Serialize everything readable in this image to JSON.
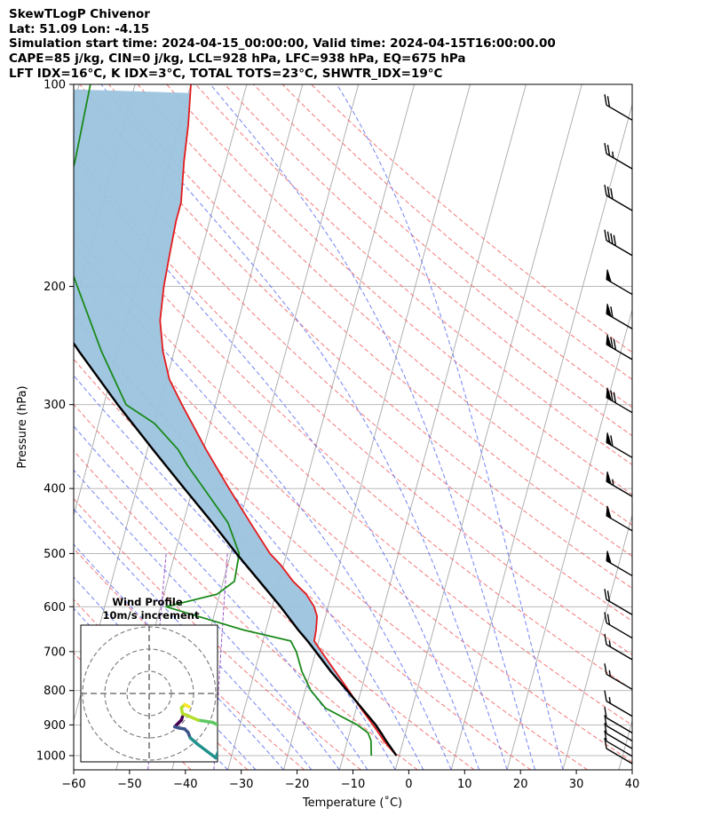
{
  "header": {
    "line1": "SkewTLogP Chivenor",
    "line2": "Lat: 51.09   Lon: -4.15",
    "line3": "Simulation start time: 2024-04-15_00:00:00, Valid time: 2024-04-15T16:00:00.00",
    "line4": "CAPE=85 j/kg, CIN=0 j/kg, LCL=928 hPa, LFC=938 hPa, EQ=675 hPa",
    "line5": "LFT IDX=16°C, K IDX=3°C, TOTAL TOTS=23°C, SHWTR_IDX=19°C"
  },
  "inset": {
    "title": "Wind Profile",
    "subtitle": "10m/s increment"
  },
  "colors": {
    "temperature": "#e41a1c",
    "dewpoint": "#1a8a1a",
    "parcel": "#000000",
    "cape_fill": "#9cc3de",
    "dry_adiabat": "#f26060",
    "moist_adiabat": "#5a6ef0",
    "mixing_ratio": "#9a55c8",
    "isotherm": "#a8a8a8",
    "isobar": "#b0b0b0"
  },
  "chart_data": {
    "type": "skew-t log-p",
    "xlabel": "Temperature (˚C)",
    "ylabel": "Pressure (hPa)",
    "xlim": [
      -60,
      40
    ],
    "ylim": [
      1050,
      100
    ],
    "y_scale": "log",
    "x_ticks": [
      "−60",
      "−50",
      "−40",
      "−30",
      "−20",
      "−10",
      "0",
      "10",
      "20",
      "30",
      "40"
    ],
    "y_ticks": [
      "100",
      "200",
      "300",
      "400",
      "500",
      "600",
      "700",
      "800",
      "900",
      "1000"
    ],
    "grid": true,
    "series": [
      {
        "key": "temperature",
        "pressure": [
          1000,
          950,
          925,
          900,
          850,
          800,
          750,
          700,
          675,
          650,
          620,
          600,
          575,
          550,
          520,
          500,
          450,
          400,
          350,
          300,
          275,
          250,
          225,
          200,
          180,
          160,
          150,
          130,
          115,
          100
        ],
        "temp": [
          9.5,
          6.5,
          5.2,
          3.8,
          0.8,
          -2.2,
          -5.5,
          -9.0,
          -10.8,
          -11.0,
          -11.5,
          -12.5,
          -14.5,
          -17.5,
          -20.5,
          -23.0,
          -28.0,
          -33.5,
          -39.5,
          -46.0,
          -49.5,
          -52.0,
          -54.0,
          -55.0,
          -55.5,
          -56.0,
          -56.0,
          -57.5,
          -58.5,
          -60.0
        ]
      },
      {
        "key": "dewpoint",
        "pressure": [
          1000,
          950,
          925,
          900,
          850,
          800,
          750,
          700,
          675,
          650,
          600,
          575,
          550,
          500,
          450,
          400,
          370,
          350,
          320,
          300,
          250,
          200,
          180,
          160,
          150,
          140,
          130,
          100
        ],
        "temp": [
          5.0,
          4.2,
          3.3,
          1.0,
          -5.5,
          -9.0,
          -11.5,
          -13.5,
          -15.0,
          -24.0,
          -39.0,
          -30.5,
          -28.0,
          -28.5,
          -32.0,
          -38.0,
          -42.0,
          -44.5,
          -50.0,
          -56.0,
          -63.0,
          -70.5,
          -74.0,
          -75.0,
          -76.0,
          -77.0,
          -77.0,
          -78.0
        ]
      },
      {
        "key": "parcel",
        "pressure": [
          1000,
          950,
          928,
          900,
          850,
          800,
          750,
          700,
          675,
          650,
          600,
          550,
          500,
          450,
          400,
          350,
          300,
          250,
          200,
          150,
          100
        ],
        "temp": [
          9.5,
          6.9,
          5.8,
          4.3,
          1.0,
          -2.5,
          -6.3,
          -10.0,
          -12.0,
          -14.2,
          -18.5,
          -23.5,
          -29.0,
          -34.8,
          -41.5,
          -49.0,
          -57.5,
          -67.0,
          -78.0,
          -92.0,
          -111.0
        ]
      }
    ],
    "cape_region": {
      "from_pressure": 938,
      "to_pressure": 100
    },
    "wind_barbs": [
      {
        "pressure": 1000,
        "glyph": "barb",
        "flags": 0,
        "full": 1,
        "half": 0
      },
      {
        "pressure": 975,
        "glyph": "barb",
        "flags": 0,
        "full": 1,
        "half": 0
      },
      {
        "pressure": 950,
        "glyph": "barb",
        "flags": 0,
        "full": 1,
        "half": 0
      },
      {
        "pressure": 925,
        "glyph": "barb",
        "flags": 0,
        "full": 1,
        "half": 0
      },
      {
        "pressure": 900,
        "glyph": "barb",
        "flags": 0,
        "full": 1,
        "half": 0
      },
      {
        "pressure": 850,
        "glyph": "barb",
        "flags": 0,
        "full": 1,
        "half": 1
      },
      {
        "pressure": 775,
        "glyph": "barb",
        "flags": 0,
        "full": 1,
        "half": 1
      },
      {
        "pressure": 700,
        "glyph": "barb",
        "flags": 0,
        "full": 1,
        "half": 1
      },
      {
        "pressure": 650,
        "glyph": "barb",
        "flags": 0,
        "full": 2,
        "half": 0
      },
      {
        "pressure": 600,
        "glyph": "barb",
        "flags": 0,
        "full": 2,
        "half": 0
      },
      {
        "pressure": 525,
        "glyph": "barb",
        "flags": 1,
        "full": 0,
        "half": 0
      },
      {
        "pressure": 450,
        "glyph": "barb",
        "flags": 1,
        "full": 0,
        "half": 0
      },
      {
        "pressure": 400,
        "glyph": "barb",
        "flags": 1,
        "full": 0,
        "half": 1
      },
      {
        "pressure": 350,
        "glyph": "barb",
        "flags": 1,
        "full": 1,
        "half": 0
      },
      {
        "pressure": 300,
        "glyph": "barb",
        "flags": 1,
        "full": 2,
        "half": 0
      },
      {
        "pressure": 250,
        "glyph": "barb",
        "flags": 1,
        "full": 2,
        "half": 0
      },
      {
        "pressure": 225,
        "glyph": "barb",
        "flags": 1,
        "full": 1,
        "half": 0
      },
      {
        "pressure": 200,
        "glyph": "barb",
        "flags": 1,
        "full": 0,
        "half": 0
      },
      {
        "pressure": 175,
        "glyph": "barb",
        "flags": 0,
        "full": 4,
        "half": 0
      },
      {
        "pressure": 150,
        "glyph": "barb",
        "flags": 0,
        "full": 3,
        "half": 0
      },
      {
        "pressure": 130,
        "glyph": "barb",
        "flags": 0,
        "full": 2,
        "half": 1
      },
      {
        "pressure": 110,
        "glyph": "barb",
        "flags": 0,
        "full": 2,
        "half": 0
      }
    ],
    "hodograph": {
      "title": "Wind Profile",
      "ring_increment_ms": 10,
      "rings": [
        10,
        20,
        30
      ],
      "u_ms": [
        15.0,
        14.5,
        13.5,
        12.5,
        11.5,
        13.0,
        16.0,
        17.5,
        18.5,
        22.0,
        26.0,
        30.0,
        32.0,
        32.5,
        31.5,
        28.5,
        22.0,
        15.0,
        14.5,
        16.0,
        18.0
      ],
      "v_ms": [
        -10.5,
        -12.0,
        -13.0,
        -14.0,
        -15.0,
        -15.5,
        -16.0,
        -17.5,
        -20.0,
        -23.0,
        -26.0,
        -29.0,
        -24.0,
        -19.0,
        -14.5,
        -13.0,
        -12.0,
        -9.0,
        -6.5,
        -5.0,
        -6.0
      ]
    }
  }
}
